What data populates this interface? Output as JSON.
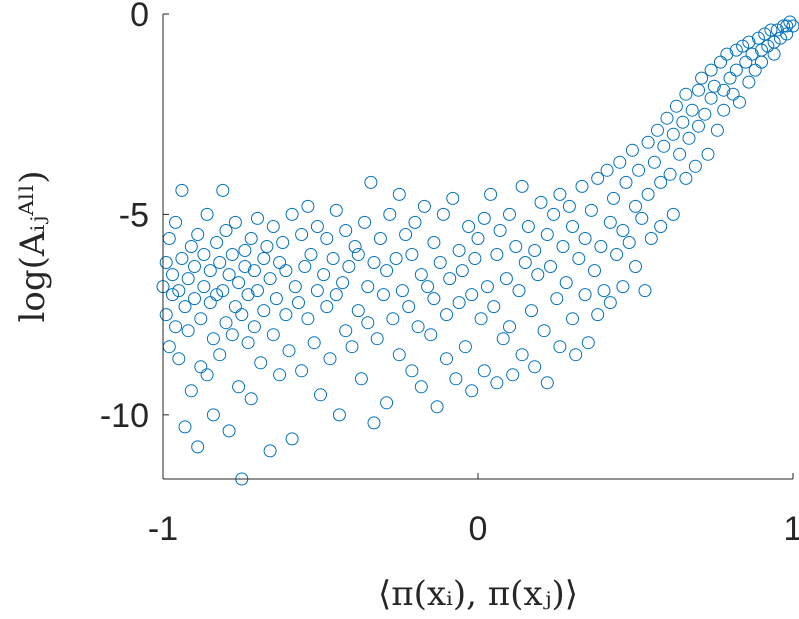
{
  "chart_data": {
    "type": "scatter",
    "title": "",
    "xlabel": "⟨π(xᵢ), π(xⱼ)⟩",
    "ylabel": "log(Aᵢⱼᴬˡˡ)",
    "xlim": [
      -1,
      1
    ],
    "ylim": [
      -11.6,
      0
    ],
    "x_ticks": [
      -1,
      0,
      1
    ],
    "x_tick_labels": [
      "-1",
      "0",
      "1"
    ],
    "y_ticks": [
      -10,
      -5,
      0
    ],
    "y_tick_labels": [
      "-10",
      "-5",
      "0"
    ],
    "grid": false,
    "legend": "none",
    "marker": "open-circle",
    "color": "#0072BD",
    "series": [
      {
        "points": [
          [
            -1.0,
            -6.8
          ],
          [
            -0.99,
            -7.5
          ],
          [
            -0.99,
            -6.2
          ],
          [
            -0.98,
            -8.3
          ],
          [
            -0.98,
            -5.6
          ],
          [
            -0.97,
            -7.0
          ],
          [
            -0.97,
            -6.5
          ],
          [
            -0.96,
            -7.8
          ],
          [
            -0.96,
            -5.2
          ],
          [
            -0.95,
            -6.9
          ],
          [
            -0.95,
            -8.6
          ],
          [
            -0.94,
            -6.1
          ],
          [
            -0.94,
            -4.4
          ],
          [
            -0.93,
            -7.3
          ],
          [
            -0.93,
            -10.3
          ],
          [
            -0.92,
            -6.6
          ],
          [
            -0.92,
            -7.9
          ],
          [
            -0.91,
            -5.8
          ],
          [
            -0.91,
            -9.4
          ],
          [
            -0.9,
            -6.3
          ],
          [
            -0.9,
            -7.1
          ],
          [
            -0.89,
            -10.8
          ],
          [
            -0.89,
            -5.5
          ],
          [
            -0.88,
            -7.6
          ],
          [
            -0.88,
            -8.8
          ],
          [
            -0.87,
            -6.0
          ],
          [
            -0.87,
            -6.8
          ],
          [
            -0.86,
            -9.0
          ],
          [
            -0.86,
            -5.0
          ],
          [
            -0.85,
            -7.2
          ],
          [
            -0.85,
            -6.4
          ],
          [
            -0.84,
            -8.1
          ],
          [
            -0.84,
            -10.0
          ],
          [
            -0.83,
            -5.7
          ],
          [
            -0.83,
            -7.0
          ],
          [
            -0.82,
            -6.2
          ],
          [
            -0.82,
            -8.5
          ],
          [
            -0.81,
            -4.4
          ],
          [
            -0.81,
            -6.9
          ],
          [
            -0.8,
            -7.7
          ],
          [
            -0.8,
            -5.4
          ],
          [
            -0.79,
            -10.4
          ],
          [
            -0.79,
            -6.5
          ],
          [
            -0.78,
            -8.0
          ],
          [
            -0.78,
            -6.0
          ],
          [
            -0.77,
            -7.3
          ],
          [
            -0.77,
            -5.2
          ],
          [
            -0.76,
            -9.3
          ],
          [
            -0.76,
            -6.7
          ],
          [
            -0.75,
            -7.5
          ],
          [
            -0.75,
            -11.6
          ],
          [
            -0.74,
            -5.9
          ],
          [
            -0.74,
            -6.3
          ],
          [
            -0.73,
            -8.2
          ],
          [
            -0.73,
            -7.0
          ],
          [
            -0.72,
            -5.6
          ],
          [
            -0.72,
            -9.6
          ],
          [
            -0.71,
            -6.4
          ],
          [
            -0.71,
            -7.8
          ],
          [
            -0.7,
            -5.1
          ],
          [
            -0.7,
            -6.9
          ],
          [
            -0.69,
            -8.7
          ],
          [
            -0.68,
            -6.1
          ],
          [
            -0.68,
            -7.4
          ],
          [
            -0.67,
            -5.8
          ],
          [
            -0.66,
            -10.9
          ],
          [
            -0.66,
            -6.6
          ],
          [
            -0.65,
            -8.0
          ],
          [
            -0.65,
            -5.3
          ],
          [
            -0.64,
            -7.1
          ],
          [
            -0.63,
            -6.2
          ],
          [
            -0.63,
            -9.0
          ],
          [
            -0.62,
            -5.7
          ],
          [
            -0.61,
            -7.5
          ],
          [
            -0.61,
            -6.4
          ],
          [
            -0.6,
            -8.4
          ],
          [
            -0.59,
            -5.0
          ],
          [
            -0.59,
            -10.6
          ],
          [
            -0.58,
            -6.8
          ],
          [
            -0.57,
            -7.2
          ],
          [
            -0.56,
            -5.5
          ],
          [
            -0.56,
            -8.9
          ],
          [
            -0.55,
            -6.3
          ],
          [
            -0.54,
            -7.6
          ],
          [
            -0.54,
            -4.8
          ],
          [
            -0.53,
            -6.0
          ],
          [
            -0.52,
            -8.2
          ],
          [
            -0.51,
            -6.9
          ],
          [
            -0.51,
            -5.3
          ],
          [
            -0.5,
            -9.5
          ],
          [
            -0.49,
            -6.5
          ],
          [
            -0.48,
            -7.3
          ],
          [
            -0.48,
            -5.6
          ],
          [
            -0.47,
            -8.6
          ],
          [
            -0.46,
            -6.1
          ],
          [
            -0.45,
            -7.0
          ],
          [
            -0.45,
            -4.9
          ],
          [
            -0.44,
            -10.0
          ],
          [
            -0.43,
            -6.7
          ],
          [
            -0.42,
            -7.9
          ],
          [
            -0.42,
            -5.4
          ],
          [
            -0.41,
            -6.3
          ],
          [
            -0.4,
            -8.3
          ],
          [
            -0.39,
            -5.8
          ],
          [
            -0.38,
            -7.4
          ],
          [
            -0.38,
            -6.0
          ],
          [
            -0.37,
            -9.1
          ],
          [
            -0.36,
            -5.2
          ],
          [
            -0.35,
            -6.8
          ],
          [
            -0.35,
            -7.7
          ],
          [
            -0.34,
            -4.2
          ],
          [
            -0.33,
            -10.2
          ],
          [
            -0.33,
            -6.2
          ],
          [
            -0.32,
            -8.1
          ],
          [
            -0.31,
            -5.6
          ],
          [
            -0.3,
            -7.0
          ],
          [
            -0.29,
            -6.4
          ],
          [
            -0.29,
            -9.7
          ],
          [
            -0.28,
            -5.0
          ],
          [
            -0.27,
            -7.6
          ],
          [
            -0.26,
            -6.1
          ],
          [
            -0.25,
            -8.5
          ],
          [
            -0.25,
            -4.5
          ],
          [
            -0.24,
            -6.9
          ],
          [
            -0.23,
            -5.5
          ],
          [
            -0.22,
            -7.3
          ],
          [
            -0.21,
            -8.9
          ],
          [
            -0.21,
            -6.0
          ],
          [
            -0.2,
            -5.2
          ],
          [
            -0.19,
            -7.8
          ],
          [
            -0.18,
            -6.5
          ],
          [
            -0.18,
            -9.3
          ],
          [
            -0.17,
            -4.8
          ],
          [
            -0.16,
            -6.8
          ],
          [
            -0.15,
            -8.0
          ],
          [
            -0.14,
            -5.7
          ],
          [
            -0.14,
            -7.1
          ],
          [
            -0.13,
            -9.8
          ],
          [
            -0.12,
            -6.2
          ],
          [
            -0.11,
            -5.0
          ],
          [
            -0.1,
            -7.5
          ],
          [
            -0.1,
            -8.6
          ],
          [
            -0.09,
            -6.6
          ],
          [
            -0.08,
            -4.6
          ],
          [
            -0.07,
            -9.1
          ],
          [
            -0.06,
            -5.9
          ],
          [
            -0.06,
            -7.2
          ],
          [
            -0.05,
            -6.4
          ],
          [
            -0.04,
            -8.3
          ],
          [
            -0.03,
            -5.3
          ],
          [
            -0.02,
            -7.0
          ],
          [
            -0.02,
            -9.4
          ],
          [
            -0.01,
            -6.1
          ],
          [
            0.0,
            -5.6
          ],
          [
            0.01,
            -7.6
          ],
          [
            0.02,
            -8.9
          ],
          [
            0.02,
            -5.1
          ],
          [
            0.03,
            -6.8
          ],
          [
            0.04,
            -4.5
          ],
          [
            0.05,
            -7.3
          ],
          [
            0.06,
            -9.2
          ],
          [
            0.06,
            -6.0
          ],
          [
            0.07,
            -5.4
          ],
          [
            0.08,
            -8.1
          ],
          [
            0.09,
            -6.6
          ],
          [
            0.1,
            -5.0
          ],
          [
            0.1,
            -7.8
          ],
          [
            0.11,
            -9.0
          ],
          [
            0.12,
            -5.8
          ],
          [
            0.13,
            -6.9
          ],
          [
            0.14,
            -4.3
          ],
          [
            0.14,
            -8.5
          ],
          [
            0.15,
            -6.2
          ],
          [
            0.16,
            -5.3
          ],
          [
            0.17,
            -7.4
          ],
          [
            0.18,
            -8.8
          ],
          [
            0.18,
            -5.9
          ],
          [
            0.19,
            -6.5
          ],
          [
            0.2,
            -4.7
          ],
          [
            0.21,
            -7.9
          ],
          [
            0.22,
            -5.5
          ],
          [
            0.22,
            -9.2
          ],
          [
            0.23,
            -6.3
          ],
          [
            0.24,
            -5.0
          ],
          [
            0.25,
            -7.1
          ],
          [
            0.26,
            -4.5
          ],
          [
            0.26,
            -8.3
          ],
          [
            0.27,
            -5.8
          ],
          [
            0.28,
            -6.7
          ],
          [
            0.29,
            -4.8
          ],
          [
            0.3,
            -7.6
          ],
          [
            0.3,
            -5.3
          ],
          [
            0.31,
            -8.5
          ],
          [
            0.32,
            -6.1
          ],
          [
            0.33,
            -4.3
          ],
          [
            0.34,
            -7.0
          ],
          [
            0.34,
            -5.6
          ],
          [
            0.35,
            -8.2
          ],
          [
            0.36,
            -4.9
          ],
          [
            0.37,
            -6.4
          ],
          [
            0.38,
            -7.5
          ],
          [
            0.38,
            -4.1
          ],
          [
            0.39,
            -5.8
          ],
          [
            0.4,
            -6.9
          ],
          [
            0.41,
            -3.9
          ],
          [
            0.42,
            -5.2
          ],
          [
            0.42,
            -7.2
          ],
          [
            0.43,
            -4.6
          ],
          [
            0.44,
            -6.0
          ],
          [
            0.45,
            -3.7
          ],
          [
            0.46,
            -5.4
          ],
          [
            0.46,
            -6.8
          ],
          [
            0.47,
            -4.2
          ],
          [
            0.48,
            -5.7
          ],
          [
            0.49,
            -3.4
          ],
          [
            0.5,
            -4.8
          ],
          [
            0.5,
            -6.3
          ],
          [
            0.51,
            -3.9
          ],
          [
            0.52,
            -5.1
          ],
          [
            0.53,
            -6.9
          ],
          [
            0.54,
            -3.2
          ],
          [
            0.54,
            -4.5
          ],
          [
            0.55,
            -5.6
          ],
          [
            0.56,
            -3.7
          ],
          [
            0.57,
            -2.9
          ],
          [
            0.58,
            -4.2
          ],
          [
            0.58,
            -5.3
          ],
          [
            0.59,
            -3.3
          ],
          [
            0.6,
            -2.6
          ],
          [
            0.61,
            -4.0
          ],
          [
            0.62,
            -3.0
          ],
          [
            0.62,
            -5.0
          ],
          [
            0.63,
            -2.3
          ],
          [
            0.64,
            -3.5
          ],
          [
            0.65,
            -2.7
          ],
          [
            0.66,
            -4.1
          ],
          [
            0.66,
            -2.0
          ],
          [
            0.67,
            -3.1
          ],
          [
            0.68,
            -2.4
          ],
          [
            0.69,
            -3.8
          ],
          [
            0.7,
            -1.9
          ],
          [
            0.7,
            -2.8
          ],
          [
            0.71,
            -1.6
          ],
          [
            0.72,
            -2.5
          ],
          [
            0.73,
            -3.5
          ],
          [
            0.74,
            -1.4
          ],
          [
            0.74,
            -2.1
          ],
          [
            0.75,
            -1.8
          ],
          [
            0.76,
            -2.9
          ],
          [
            0.77,
            -1.2
          ],
          [
            0.78,
            -1.9
          ],
          [
            0.78,
            -2.4
          ],
          [
            0.79,
            -1.0
          ],
          [
            0.8,
            -1.6
          ],
          [
            0.81,
            -2.0
          ],
          [
            0.82,
            -0.9
          ],
          [
            0.82,
            -1.4
          ],
          [
            0.83,
            -2.2
          ],
          [
            0.84,
            -0.8
          ],
          [
            0.85,
            -1.2
          ],
          [
            0.86,
            -1.7
          ],
          [
            0.86,
            -0.7
          ],
          [
            0.87,
            -1.0
          ],
          [
            0.88,
            -1.4
          ],
          [
            0.89,
            -0.6
          ],
          [
            0.9,
            -0.9
          ],
          [
            0.9,
            -1.2
          ],
          [
            0.91,
            -0.5
          ],
          [
            0.92,
            -0.8
          ],
          [
            0.93,
            -0.4
          ],
          [
            0.94,
            -0.7
          ],
          [
            0.94,
            -1.0
          ],
          [
            0.95,
            -0.4
          ],
          [
            0.96,
            -0.6
          ],
          [
            0.97,
            -0.3
          ],
          [
            0.98,
            -0.5
          ],
          [
            0.98,
            -0.3
          ],
          [
            0.99,
            -0.2
          ],
          [
            1.0,
            -0.3
          ]
        ]
      }
    ]
  }
}
